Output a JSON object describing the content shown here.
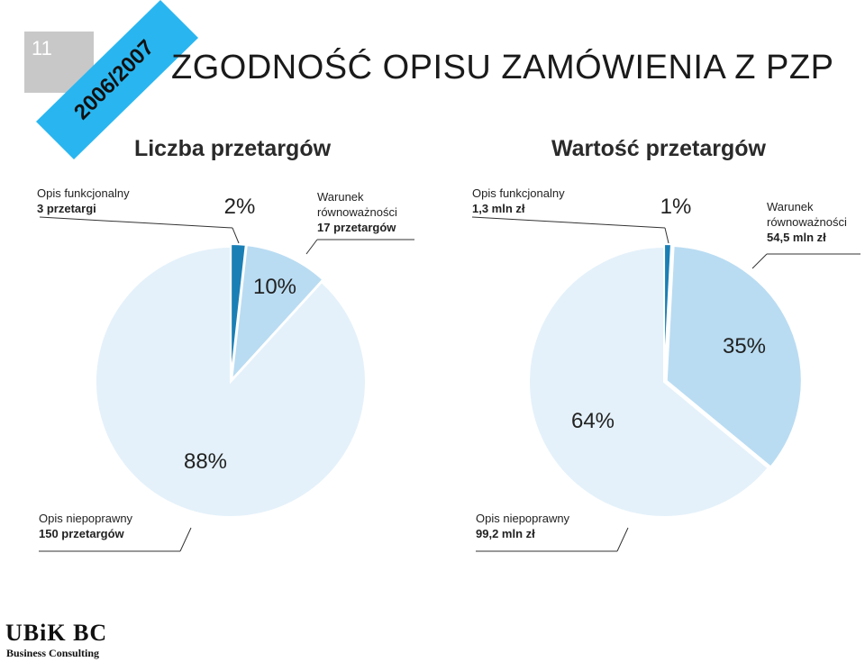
{
  "slide": {
    "number": "11",
    "ribbon_text": "2006/2007",
    "title": "ZGODNOŚĆ OPISU ZAMÓWIENIA Z PZP",
    "footer_logo": "UBiK BC",
    "footer_sub": "Business Consulting"
  },
  "colors": {
    "ribbon": "#29b6f0",
    "slice_dark": "#1a7fb5",
    "slice_mid": "#b9dcf2",
    "slice_light": "#e4f1fa",
    "leader": "#333333"
  },
  "chart_data": [
    {
      "type": "pie",
      "title": "Liczba przetargów",
      "slices": [
        {
          "label": "Opis funkcjonalny",
          "detail": "3 przetargi",
          "percent_label": "2%",
          "value": 3,
          "color": "#1a7fb5"
        },
        {
          "label": "Warunek równoważności",
          "detail": "17 przetargów",
          "percent_label": "10%",
          "value": 17,
          "color": "#b9dcf2"
        },
        {
          "label": "Opis niepoprawny",
          "detail": "150 przetargów",
          "percent_label": "88%",
          "value": 150,
          "color": "#e4f1fa"
        }
      ]
    },
    {
      "type": "pie",
      "title": "Wartość przetargów",
      "slices": [
        {
          "label": "Opis funkcjonalny",
          "detail": "1,3 mln zł",
          "percent_label": "1%",
          "value": 1.3,
          "color": "#1a7fb5"
        },
        {
          "label": "Warunek równoważności",
          "detail": "54,5 mln zł",
          "percent_label": "35%",
          "value": 54.5,
          "color": "#b9dcf2"
        },
        {
          "label": "Opis niepoprawny",
          "detail": "99,2 mln zł",
          "percent_label": "64%",
          "value": 99.2,
          "color": "#e4f1fa"
        }
      ]
    }
  ]
}
